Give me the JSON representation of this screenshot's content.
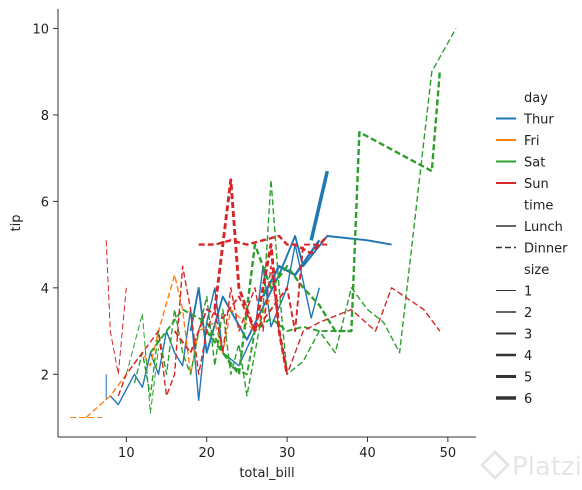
{
  "chart_data": {
    "type": "line",
    "xlabel": "total_bill",
    "ylabel": "tip",
    "xlim": [
      1.5,
      53.5
    ],
    "ylim": [
      0.55,
      10.45
    ],
    "xticks": [
      10,
      20,
      30,
      40,
      50
    ],
    "yticks": [
      2,
      4,
      6,
      8,
      10
    ],
    "grid": false,
    "legend_position": "right",
    "hue": {
      "title": "day",
      "levels": [
        {
          "label": "Thur",
          "color": "#1f77b4"
        },
        {
          "label": "Fri",
          "color": "#ff7f0e"
        },
        {
          "label": "Sat",
          "color": "#2ca02c"
        },
        {
          "label": "Sun",
          "color": "#d62728"
        }
      ]
    },
    "style": {
      "title": "time",
      "levels": [
        {
          "label": "Lunch",
          "dash": "solid"
        },
        {
          "label": "Dinner",
          "dash": "dashed"
        }
      ]
    },
    "size": {
      "title": "size",
      "levels": [
        {
          "label": "1",
          "value": 1
        },
        {
          "label": "2",
          "value": 2
        },
        {
          "label": "3",
          "value": 3
        },
        {
          "label": "4",
          "value": 4
        },
        {
          "label": "5",
          "value": 5
        },
        {
          "label": "6",
          "value": 6
        }
      ]
    },
    "series": [
      {
        "day": "Thur",
        "time": "Lunch",
        "size": 1,
        "x": [
          7.5,
          7.5
        ],
        "y": [
          1.4,
          2.0
        ]
      },
      {
        "day": "Thur",
        "time": "Lunch",
        "size": 2,
        "x": [
          8,
          9,
          11,
          12,
          13,
          14,
          15,
          16,
          17,
          18,
          19,
          20,
          21,
          22,
          24,
          26,
          27,
          28,
          30,
          31,
          33,
          34
        ],
        "y": [
          1.5,
          1.3,
          2.0,
          1.7,
          2.5,
          2.0,
          3.0,
          2.5,
          2.2,
          3.5,
          1.4,
          3.2,
          4.0,
          2.5,
          2.2,
          3.0,
          4.5,
          3.1,
          4.0,
          5.0,
          3.3,
          4.0
        ]
      },
      {
        "day": "Thur",
        "time": "Lunch",
        "size": 3,
        "x": [
          18,
          19,
          20,
          22,
          25,
          29,
          31,
          32,
          35,
          40,
          43
        ],
        "y": [
          3.0,
          4.0,
          2.5,
          3.8,
          2.8,
          4.3,
          5.2,
          4.5,
          5.2,
          5.1,
          5.0
        ]
      },
      {
        "day": "Thur",
        "time": "Lunch",
        "size": 4,
        "x": [
          27,
          29,
          31,
          34
        ],
        "y": [
          3.8,
          4.5,
          4.3,
          5.1
        ]
      },
      {
        "day": "Thur",
        "time": "Lunch",
        "size": 6,
        "x": [
          33,
          35
        ],
        "y": [
          5.1,
          6.7
        ]
      },
      {
        "day": "Fri",
        "time": "Dinner",
        "size": 1,
        "x": [
          3,
          7
        ],
        "y": [
          1.0,
          1.0
        ]
      },
      {
        "day": "Fri",
        "time": "Dinner",
        "size": 2,
        "x": [
          5,
          8,
          10,
          12,
          13,
          14,
          16,
          17,
          18,
          19,
          21,
          22,
          23,
          26,
          28
        ],
        "y": [
          1.0,
          1.5,
          2.0,
          2.5,
          2.2,
          3.0,
          4.3,
          3.5,
          2.0,
          3.0,
          3.2,
          2.5,
          3.5,
          3.0,
          3.8
        ]
      },
      {
        "day": "Sat",
        "time": "Dinner",
        "size": 1,
        "x": [
          10,
          12,
          13,
          14
        ],
        "y": [
          2.0,
          3.4,
          1.1,
          2.6
        ]
      },
      {
        "day": "Sat",
        "time": "Dinner",
        "size": 2,
        "x": [
          11,
          12,
          13,
          14,
          15,
          16,
          17,
          18,
          19,
          20,
          21,
          22,
          23,
          24,
          25,
          26,
          27,
          28,
          29,
          30,
          32,
          34,
          36,
          38,
          40,
          42,
          44,
          48,
          51
        ],
        "y": [
          1.8,
          2.5,
          1.5,
          3.0,
          2.0,
          3.5,
          2.5,
          2.0,
          3.0,
          3.8,
          2.2,
          3.5,
          2.0,
          2.7,
          1.5,
          2.5,
          3.5,
          6.5,
          4.0,
          2.0,
          2.3,
          3.0,
          2.5,
          4.0,
          3.5,
          3.2,
          2.5,
          9.0,
          10.0
        ]
      },
      {
        "day": "Sat",
        "time": "Dinner",
        "size": 3,
        "x": [
          13,
          15,
          17,
          20,
          23,
          25,
          26,
          28,
          30,
          32,
          34,
          36,
          38
        ],
        "y": [
          2.5,
          3.0,
          3.5,
          3.2,
          2.2,
          2.0,
          3.0,
          3.3,
          3.0,
          3.1,
          3.0,
          3.0,
          3.0
        ]
      },
      {
        "day": "Sat",
        "time": "Dinner",
        "size": 4,
        "x": [
          20,
          22,
          24,
          25,
          26,
          28,
          30,
          32,
          34,
          36,
          38,
          39,
          40,
          48,
          49
        ],
        "y": [
          3.0,
          2.5,
          2.0,
          3.5,
          5.0,
          4.0,
          4.5,
          4.0,
          3.6,
          3.0,
          3.0,
          7.6,
          7.5,
          6.7,
          9.0
        ]
      },
      {
        "day": "Sun",
        "time": "Dinner",
        "size": 1,
        "x": [
          7.5,
          8,
          9,
          10
        ],
        "y": [
          5.1,
          3.0,
          2.0,
          4.0
        ]
      },
      {
        "day": "Sun",
        "time": "Dinner",
        "size": 2,
        "x": [
          9,
          10,
          12,
          14,
          15,
          16,
          17,
          18,
          19,
          20,
          21,
          22,
          23,
          24,
          25,
          26,
          27,
          28,
          29,
          30,
          32,
          34,
          38,
          41,
          43,
          47,
          49
        ],
        "y": [
          1.5,
          2.0,
          2.5,
          3.0,
          1.5,
          2.0,
          4.5,
          3.5,
          2.0,
          3.0,
          3.5,
          2.5,
          4.0,
          3.0,
          3.5,
          4.0,
          3.0,
          4.5,
          3.0,
          2.0,
          3.0,
          3.2,
          3.5,
          3.0,
          4.0,
          3.5,
          3.0
        ]
      },
      {
        "day": "Sun",
        "time": "Dinner",
        "size": 3,
        "x": [
          16,
          18,
          20,
          22,
          24,
          26,
          28,
          30,
          31,
          32,
          35
        ],
        "y": [
          3.0,
          2.5,
          3.5,
          3.3,
          3.8,
          3.0,
          3.5,
          4.0,
          3.0,
          5.0,
          5.0
        ]
      },
      {
        "day": "Sun",
        "time": "Dinner",
        "size": 4,
        "x": [
          19,
          21,
          23,
          25,
          27,
          29,
          30,
          31,
          33,
          35
        ],
        "y": [
          5.0,
          5.0,
          5.1,
          5.0,
          5.1,
          5.2,
          5.0,
          5.0,
          4.8,
          5.2
        ]
      },
      {
        "day": "Sun",
        "time": "Dinner",
        "size": 5,
        "x": [
          21,
          23,
          24,
          25,
          26,
          28,
          29,
          30
        ],
        "y": [
          3.5,
          6.5,
          4.0,
          3.5,
          3.0,
          5.0,
          3.0,
          2.0
        ]
      }
    ]
  },
  "watermark": {
    "text": "Platzi"
  }
}
